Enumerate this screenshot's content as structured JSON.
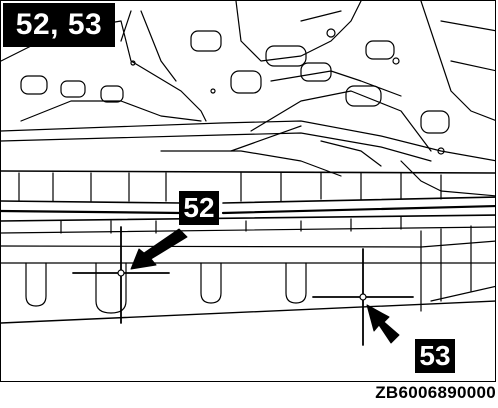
{
  "figure": {
    "title_badge": "52, 53",
    "callouts": [
      {
        "label": "52"
      },
      {
        "label": "53"
      }
    ],
    "figure_id": "ZB6006890000"
  },
  "colors": {
    "ink": "#000000",
    "paper": "#ffffff"
  },
  "icons": [
    "arrow-icon",
    "crosshair-icon"
  ]
}
